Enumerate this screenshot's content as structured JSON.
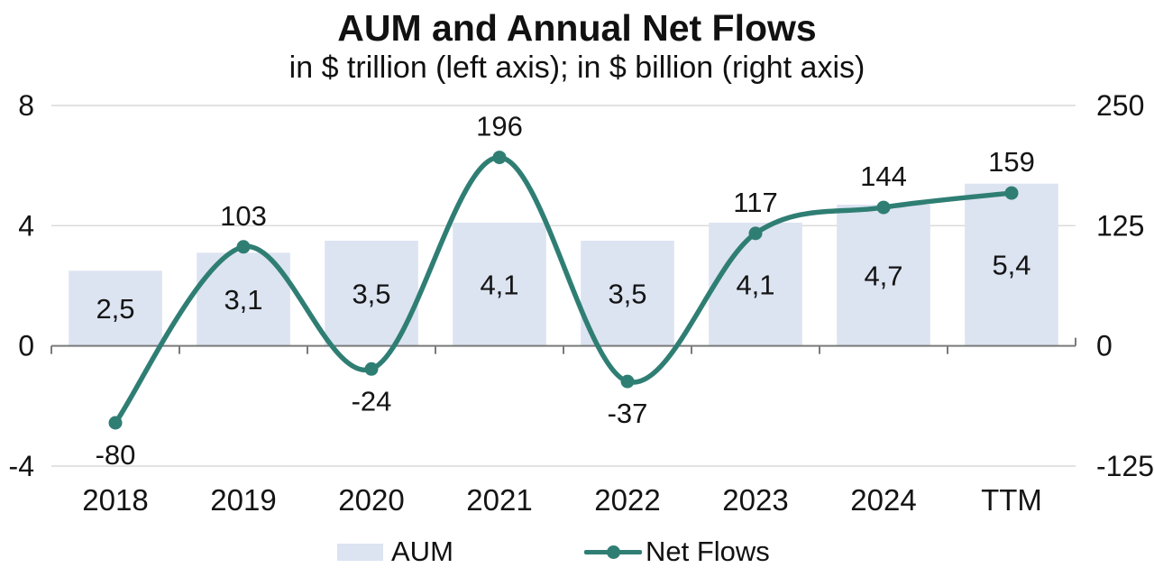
{
  "chart": {
    "title": "AUM and Annual Net Flows",
    "subtitle": "in $ trillion (left axis); in $ billion (right axis)"
  },
  "chart_data": {
    "type": "combo-bar-line",
    "title": "AUM and Annual Net Flows",
    "subtitle": "in $ trillion (left axis); in $ billion (right axis)",
    "categories": [
      "2018",
      "2019",
      "2020",
      "2021",
      "2022",
      "2023",
      "2024",
      "TTM"
    ],
    "series": [
      {
        "name": "AUM",
        "type": "bar",
        "axis": "left",
        "unit": "$ trillion",
        "values": [
          2.5,
          3.1,
          3.5,
          4.1,
          3.5,
          4.1,
          4.7,
          5.4
        ],
        "labels": [
          "2,5",
          "3,1",
          "3,5",
          "4,1",
          "3,5",
          "4,1",
          "4,7",
          "5,4"
        ]
      },
      {
        "name": "Net Flows",
        "type": "line",
        "smooth": true,
        "axis": "right",
        "unit": "$ billion",
        "values": [
          -80,
          103,
          -24,
          196,
          -37,
          117,
          144,
          159
        ],
        "labels": [
          "-80",
          "103",
          "-24",
          "196",
          "-37",
          "117",
          "144",
          "159"
        ]
      }
    ],
    "left_axis": {
      "min": -4,
      "max": 8,
      "ticks": [
        8,
        4,
        0,
        -4
      ]
    },
    "right_axis": {
      "min": -125,
      "max": 250,
      "ticks": [
        250,
        125,
        0,
        -125
      ]
    },
    "grid": true,
    "legend_position": "bottom"
  },
  "colors": {
    "bar": "#dce3f1",
    "line": "#2f7e74",
    "grid": "#d9d9d9",
    "axis": "#7a7a7a",
    "text": "#141414"
  }
}
